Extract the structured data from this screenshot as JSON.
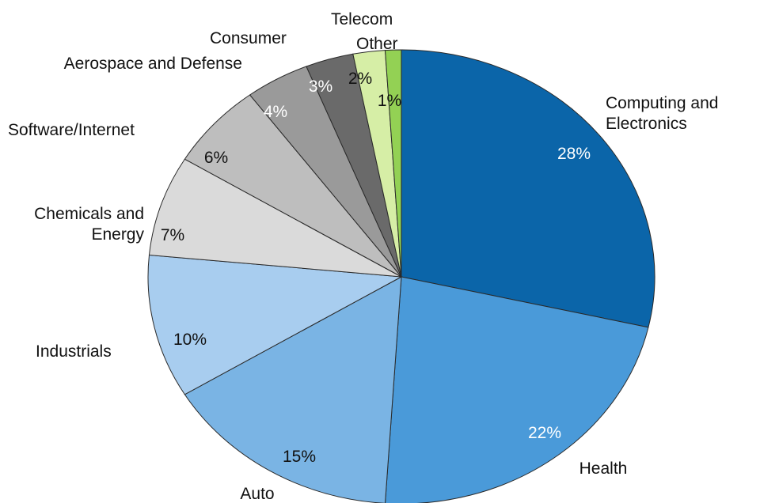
{
  "chart_data": {
    "type": "pie",
    "categories": [
      "Computing and Electronics",
      "Health",
      "Auto",
      "Industrials",
      "Chemicals and Energy",
      "Software/Internet",
      "Aerospace and Defense",
      "Consumer",
      "Telecom",
      "Other"
    ],
    "values": [
      28,
      22,
      15,
      10,
      7,
      6,
      4,
      3,
      2,
      1
    ],
    "value_labels": [
      "28%",
      "22%",
      "15%",
      "10%",
      "7%",
      "6%",
      "4%",
      "3%",
      "2%",
      "1%"
    ],
    "colors": [
      "#0b65a9",
      "#4a9ad9",
      "#7ab4e4",
      "#a8cdef",
      "#dadada",
      "#bebebe",
      "#9a9a9a",
      "#6a6a6a",
      "#d6eea6",
      "#93d154"
    ]
  }
}
